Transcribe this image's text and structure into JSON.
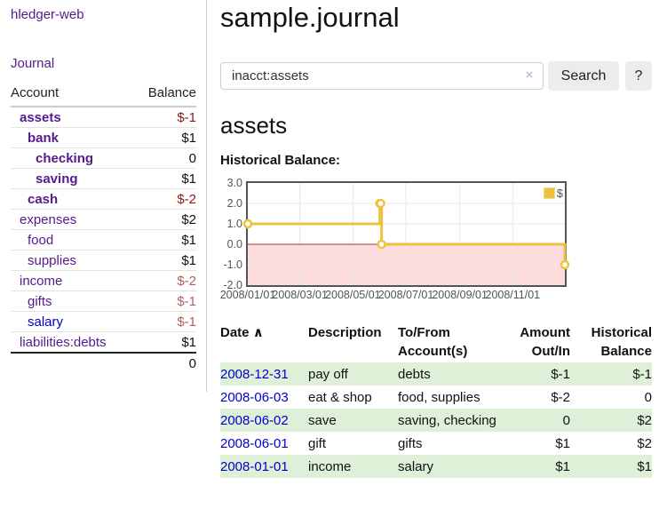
{
  "app": {
    "brand": "hledger-web"
  },
  "sidebar": {
    "journal_link": "Journal",
    "accounts": {
      "col_account": "Account",
      "col_balance": "Balance",
      "rows": [
        {
          "name": "assets",
          "balance": "$-1"
        },
        {
          "name": "bank",
          "balance": "$1"
        },
        {
          "name": "checking",
          "balance": "0"
        },
        {
          "name": "saving",
          "balance": "$1"
        },
        {
          "name": "cash",
          "balance": "$-2"
        },
        {
          "name": "expenses",
          "balance": "$2"
        },
        {
          "name": "food",
          "balance": "$1"
        },
        {
          "name": "supplies",
          "balance": "$1"
        },
        {
          "name": "income",
          "balance": "$-2"
        },
        {
          "name": "gifts",
          "balance": "$-1"
        },
        {
          "name": "salary",
          "balance": "$-1"
        },
        {
          "name": "liabilities:debts",
          "balance": "$1"
        }
      ],
      "total": "0"
    }
  },
  "header": {
    "title": "sample.journal"
  },
  "search": {
    "value": "inacct:assets",
    "clear_icon": "×",
    "search_label": "Search",
    "help_label": "?"
  },
  "account_page": {
    "heading": "assets",
    "section_label": "Historical Balance:"
  },
  "chart_data": {
    "type": "line",
    "title": "Historical Balance: assets",
    "x_domain": [
      "2008-01-01",
      "2008-12-31"
    ],
    "ylim": [
      -2,
      3
    ],
    "yticks": [
      3.0,
      2.0,
      1.0,
      0.0,
      -1.0,
      -2.0
    ],
    "xticks": [
      "2008/01/01",
      "2008/03/01",
      "2008/05/01",
      "2008/07/01",
      "2008/09/01",
      "2008/11/01"
    ],
    "series": [
      {
        "name": "$",
        "color": "#edc240",
        "style": "step-after",
        "points": [
          [
            "2008-01-01",
            1
          ],
          [
            "2008-06-01",
            2
          ],
          [
            "2008-06-02",
            2
          ],
          [
            "2008-06-03",
            0
          ],
          [
            "2008-12-31",
            -1
          ]
        ]
      }
    ],
    "grid": true,
    "legend_position": "top-right",
    "legend_label": "$",
    "negative_region": {
      "below": 0,
      "fill": "#fcdcdc",
      "line_color": "#aa3333"
    },
    "grid_color": "#e8e8e8",
    "border_color": "#545454"
  },
  "register": {
    "col_date": "Date",
    "sort_arrow": "∧",
    "col_description": "Description",
    "col_accounts": "To/From Account(s)",
    "col_amount": "Amount Out/In",
    "col_balance": "Historical Balance",
    "rows": [
      {
        "date": "2008-12-31",
        "description": "pay off",
        "accounts": "debts",
        "amount": "$-1",
        "balance": "$-1"
      },
      {
        "date": "2008-06-03",
        "description": "eat & shop",
        "accounts": "food, supplies",
        "amount": "$-2",
        "balance": "0"
      },
      {
        "date": "2008-06-02",
        "description": "save",
        "accounts": "saving, checking",
        "amount": "0",
        "balance": "$2"
      },
      {
        "date": "2008-06-01",
        "description": "gift",
        "accounts": "gifts",
        "amount": "$1",
        "balance": "$2"
      },
      {
        "date": "2008-01-01",
        "description": "income",
        "accounts": "salary",
        "amount": "$1",
        "balance": "$1"
      }
    ]
  },
  "colors": {
    "link_purple": "#551a8b",
    "link_blue": "#0000cc",
    "negative_strong": "#8b1a1a",
    "negative_muted": "#b06060",
    "row_stripe_green": "#dff0d8",
    "chart_line_yellow": "#edc240",
    "chart_negative_fill": "#fcdcdc",
    "chart_zero_line": "#aa3333",
    "chart_border": "#545454"
  }
}
